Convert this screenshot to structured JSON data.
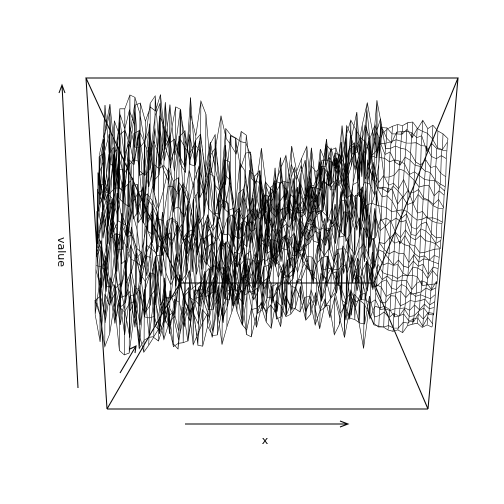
{
  "chart_data": {
    "type": "surface",
    "xlabel": "x",
    "ylabel": "y",
    "zlabel": "value",
    "box": true,
    "surface_style": "wireframe",
    "color": "#000000"
  }
}
